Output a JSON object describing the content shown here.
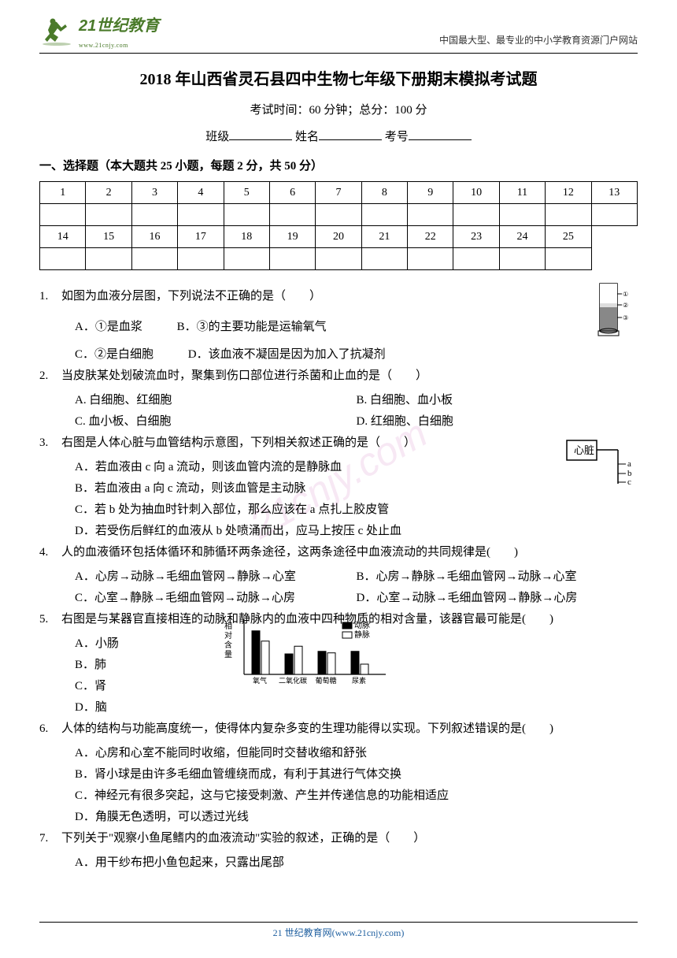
{
  "header": {
    "logo_main": "21世纪教育",
    "logo_sub": "www.21cnjy.com",
    "tagline": "中国最大型、最专业的中小学教育资源门户网站"
  },
  "title": "2018 年山西省灵石县四中生物七年级下册期末模拟考试题",
  "exam_info": "考试时间：60 分钟；总分：100 分",
  "fill_labels": {
    "class": "班级",
    "name": "姓名",
    "id": "考号"
  },
  "section1_title": "一、选择题（本大题共 25 小题，每题 2 分，共 50 分）",
  "table": {
    "row1": [
      "1",
      "2",
      "3",
      "4",
      "5",
      "6",
      "7",
      "8",
      "9",
      "10",
      "11",
      "12",
      "13"
    ],
    "row2": [
      "14",
      "15",
      "16",
      "17",
      "18",
      "19",
      "20",
      "21",
      "22",
      "23",
      "24",
      "25",
      ""
    ]
  },
  "questions": [
    {
      "num": "1.",
      "text": "如图为血液分层图，下列说法不正确的是（　　）",
      "opts": [
        {
          "k": "A",
          "t": "．①是血浆"
        },
        {
          "k": "B",
          "t": "．③的主要功能是运输氧气"
        },
        {
          "k": "C",
          "t": "．②是白细胞"
        },
        {
          "k": "D",
          "t": "．该血液不凝固是因为加入了抗凝剂"
        }
      ]
    },
    {
      "num": "2.",
      "text": "当皮肤某处划破流血时，聚集到伤口部位进行杀菌和止血的是（　　）",
      "opts": [
        {
          "k": "A",
          "t": ". 白细胞、红细胞"
        },
        {
          "k": "B",
          "t": ". 白细胞、血小板"
        },
        {
          "k": "C",
          "t": ". 血小板、白细胞"
        },
        {
          "k": "D",
          "t": ". 红细胞、白细胞"
        }
      ]
    },
    {
      "num": "3.",
      "text": "右图是人体心脏与血管结构示意图，下列相关叙述正确的是（　　）",
      "opts": [
        {
          "k": "A",
          "t": "．若血液由 c 向 a 流动，则该血管内流的是静脉血"
        },
        {
          "k": "B",
          "t": "．若血液由 a 向 c 流动，则该血管是主动脉"
        },
        {
          "k": "C",
          "t": "．若 b 处为抽血时针刺入部位，那么应该在 a 点扎上胶皮管"
        },
        {
          "k": "D",
          "t": "．若受伤后鲜红的血液从 b 处喷涌而出，应马上按压 c 处止血"
        }
      ]
    },
    {
      "num": "4.",
      "text": "人的血液循环包括体循环和肺循环两条途径，这两条途径中血液流动的共同规律是(　　)",
      "opts": [
        {
          "k": "A",
          "t": "．心房→动脉→毛细血管网→静脉→心室"
        },
        {
          "k": "B",
          "t": "．心房→静脉→毛细血管网→动脉→心室"
        },
        {
          "k": "C",
          "t": "．心室→静脉→毛细血管网→动脉→心房"
        },
        {
          "k": "D",
          "t": "．心室→动脉→毛细血管网→静脉→心房"
        }
      ]
    },
    {
      "num": "5.",
      "text": "右图是与某器官直接相连的动脉和静脉内的血液中四种物质的相对含量，该器官最可能是(　　)",
      "opts": [
        {
          "k": "A",
          "t": "．小肠"
        },
        {
          "k": "B",
          "t": "．肺"
        },
        {
          "k": "C",
          "t": "．肾"
        },
        {
          "k": "D",
          "t": "．脑"
        }
      ]
    },
    {
      "num": "6.",
      "text": "人体的结构与功能高度统一，使得体内复杂多变的生理功能得以实现。下列叙述错误的是(　　)",
      "opts": [
        {
          "k": "A",
          "t": "．心房和心室不能同时收缩，但能同时交替收缩和舒张"
        },
        {
          "k": "B",
          "t": "．肾小球是由许多毛细血管缠绕而成，有利于其进行气体交换"
        },
        {
          "k": "C",
          "t": "．神经元有很多突起，这与它接受刺激、产生并传递信息的功能相适应"
        },
        {
          "k": "D",
          "t": "．角膜无色透明，可以透过光线"
        }
      ]
    },
    {
      "num": "7.",
      "text": "下列关于\"观察小鱼尾鳍内的血液流动\"实验的叙述，正确的是（　　）",
      "opts": [
        {
          "k": "A",
          "t": "．用干纱布把小鱼包起来，只露出尾部"
        }
      ]
    }
  ],
  "chart": {
    "ylabel": "相对含量",
    "categories": [
      "氧气",
      "二氧化碳",
      "葡萄糖",
      "尿素"
    ],
    "legend": [
      "动脉",
      "静脉"
    ],
    "series": {
      "artery": [
        85,
        40,
        45,
        45
      ],
      "vein": [
        65,
        55,
        42,
        20
      ]
    },
    "colors": {
      "artery": "#000000",
      "vein": "#ffffff",
      "border": "#000000",
      "bg": "#ffffff"
    }
  },
  "footer": "21 世纪教育网(www.21cnjy.com)",
  "watermark": "21cnjy.com"
}
